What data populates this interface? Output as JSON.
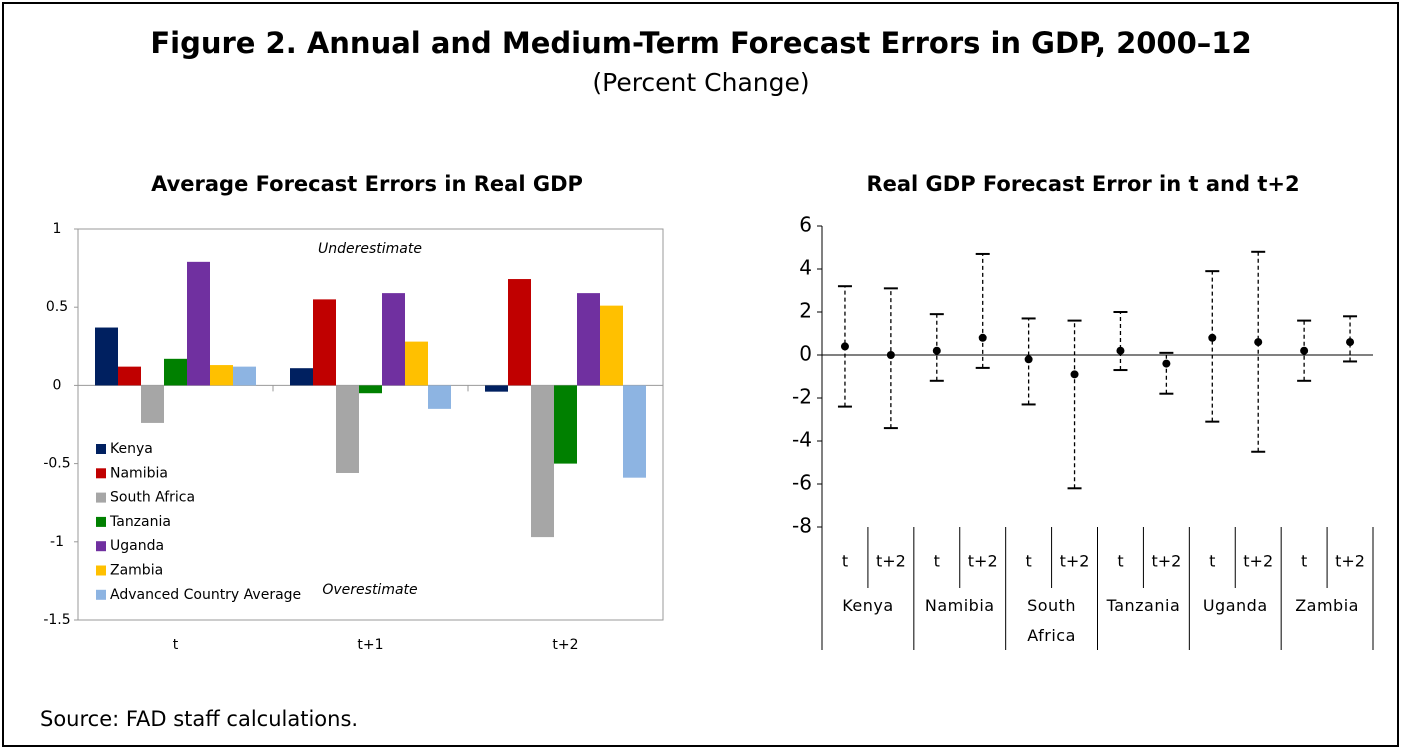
{
  "title": "Figure 2. Annual and Medium-Term Forecast Errors in GDP, 2000–12",
  "subtitle": "(Percent Change)",
  "source": "Source: FAD staff calculations.",
  "chart_data": [
    {
      "type": "bar",
      "title": "Average Forecast Errors in Real GDP",
      "categories": [
        "t",
        "t+1",
        "t+2"
      ],
      "series": [
        {
          "name": "Kenya",
          "color": "#002060",
          "values": [
            0.37,
            0.11,
            -0.04
          ]
        },
        {
          "name": "Namibia",
          "color": "#c00000",
          "values": [
            0.12,
            0.55,
            0.68
          ]
        },
        {
          "name": "South Africa",
          "color": "#a6a6a6",
          "values": [
            -0.24,
            -0.56,
            -0.97
          ]
        },
        {
          "name": "Tanzania",
          "color": "#008000",
          "values": [
            0.17,
            -0.05,
            -0.5
          ]
        },
        {
          "name": "Uganda",
          "color": "#7030a0",
          "values": [
            0.79,
            0.59,
            0.59
          ]
        },
        {
          "name": "Zambia",
          "color": "#ffc000",
          "values": [
            0.13,
            0.28,
            0.51
          ]
        },
        {
          "name": "Advanced Country Average",
          "color": "#8db4e2",
          "values": [
            0.12,
            -0.15,
            -0.59
          ]
        }
      ],
      "annotations": [
        "Underestimate",
        "Overestimate"
      ],
      "ylim": [
        -1.5,
        1
      ],
      "yticks": [
        1,
        0.5,
        0,
        -0.5,
        -1,
        -1.5
      ],
      "legend": "lower left"
    },
    {
      "type": "errorbar",
      "title": "Real GDP Forecast Error in t and t+2",
      "categories": [
        "t",
        "t+2",
        "t",
        "t+2",
        "t",
        "t+2",
        "t",
        "t+2",
        "t",
        "t+2",
        "t",
        "t+2"
      ],
      "groups": [
        "Kenya",
        "Namibia",
        "South Africa",
        "Tanzania",
        "Uganda",
        "Zambia"
      ],
      "values": [
        0.4,
        0,
        0.2,
        0.8,
        -0.2,
        -0.9,
        0.2,
        -0.4,
        0.8,
        0.6,
        0.2,
        0.6
      ],
      "lower": [
        -2.4,
        -3.4,
        -1.2,
        -0.6,
        -2.3,
        -6.2,
        -0.7,
        -1.8,
        -3.1,
        -4.5,
        -1.2,
        -0.3
      ],
      "upper": [
        3.2,
        3.1,
        1.9,
        4.7,
        1.7,
        1.6,
        2.0,
        0.1,
        3.9,
        4.8,
        1.6,
        1.8
      ],
      "color": "#000000",
      "ylim": [
        -8,
        6
      ],
      "yticks": [
        -8,
        -6,
        -4,
        -2,
        0,
        2,
        4,
        6
      ]
    }
  ]
}
